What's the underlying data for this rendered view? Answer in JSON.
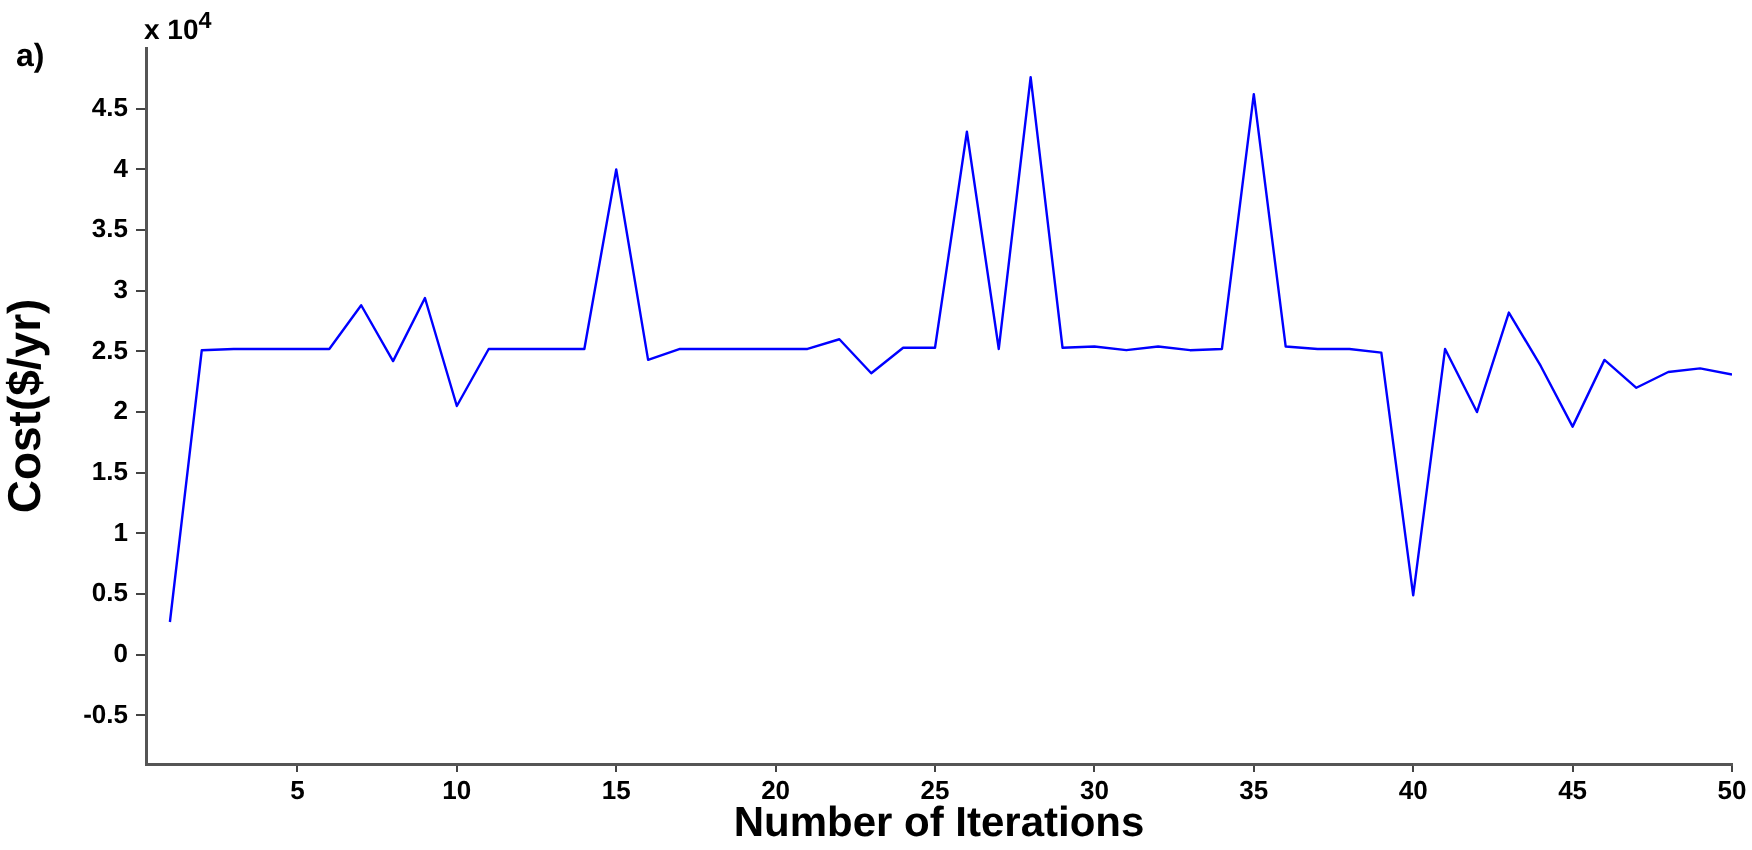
{
  "chart_data": {
    "type": "line",
    "xlabel": "Number of Iterations",
    "ylabel": "Cost($/yr)",
    "annotations": [
      "a)",
      "x 10$^{4}$"
    ],
    "x": [
      1,
      2,
      3,
      4,
      5,
      6,
      7,
      8,
      9,
      10,
      11,
      12,
      13,
      14,
      15,
      16,
      17,
      18,
      19,
      20,
      21,
      22,
      23,
      24,
      25,
      26,
      27,
      28,
      29,
      30,
      31,
      32,
      33,
      34,
      35,
      36,
      37,
      38,
      39,
      40,
      41,
      42,
      43,
      44,
      45,
      46,
      47,
      48,
      49,
      50
    ],
    "series": [
      {
        "color": "#0000ff",
        "values": [
          0.27,
          2.51,
          2.52,
          2.52,
          2.52,
          2.52,
          2.88,
          2.42,
          2.94,
          2.05,
          2.52,
          2.52,
          2.52,
          2.52,
          4.0,
          2.43,
          2.52,
          2.52,
          2.52,
          2.52,
          2.52,
          2.6,
          2.32,
          2.53,
          2.53,
          4.31,
          2.52,
          4.76,
          2.53,
          2.54,
          2.51,
          2.54,
          2.51,
          2.52,
          4.62,
          2.54,
          2.52,
          2.52,
          2.49,
          0.49,
          2.52,
          2.0,
          2.82,
          2.38,
          1.88,
          2.43,
          2.2,
          2.33,
          2.36,
          2.31
        ]
      }
    ],
    "xlim": [
      0.25,
      50
    ],
    "xticks": [
      5,
      10,
      15,
      20,
      25,
      30,
      35,
      40,
      45,
      50
    ],
    "ylim": [
      -0.9,
      5
    ],
    "yticks": [
      -0.5,
      0,
      0.5,
      1,
      1.5,
      2,
      2.5,
      3,
      3.5,
      4,
      4.5
    ],
    "grid": false,
    "legend": false,
    "marker": "none",
    "line_style": "solid"
  }
}
